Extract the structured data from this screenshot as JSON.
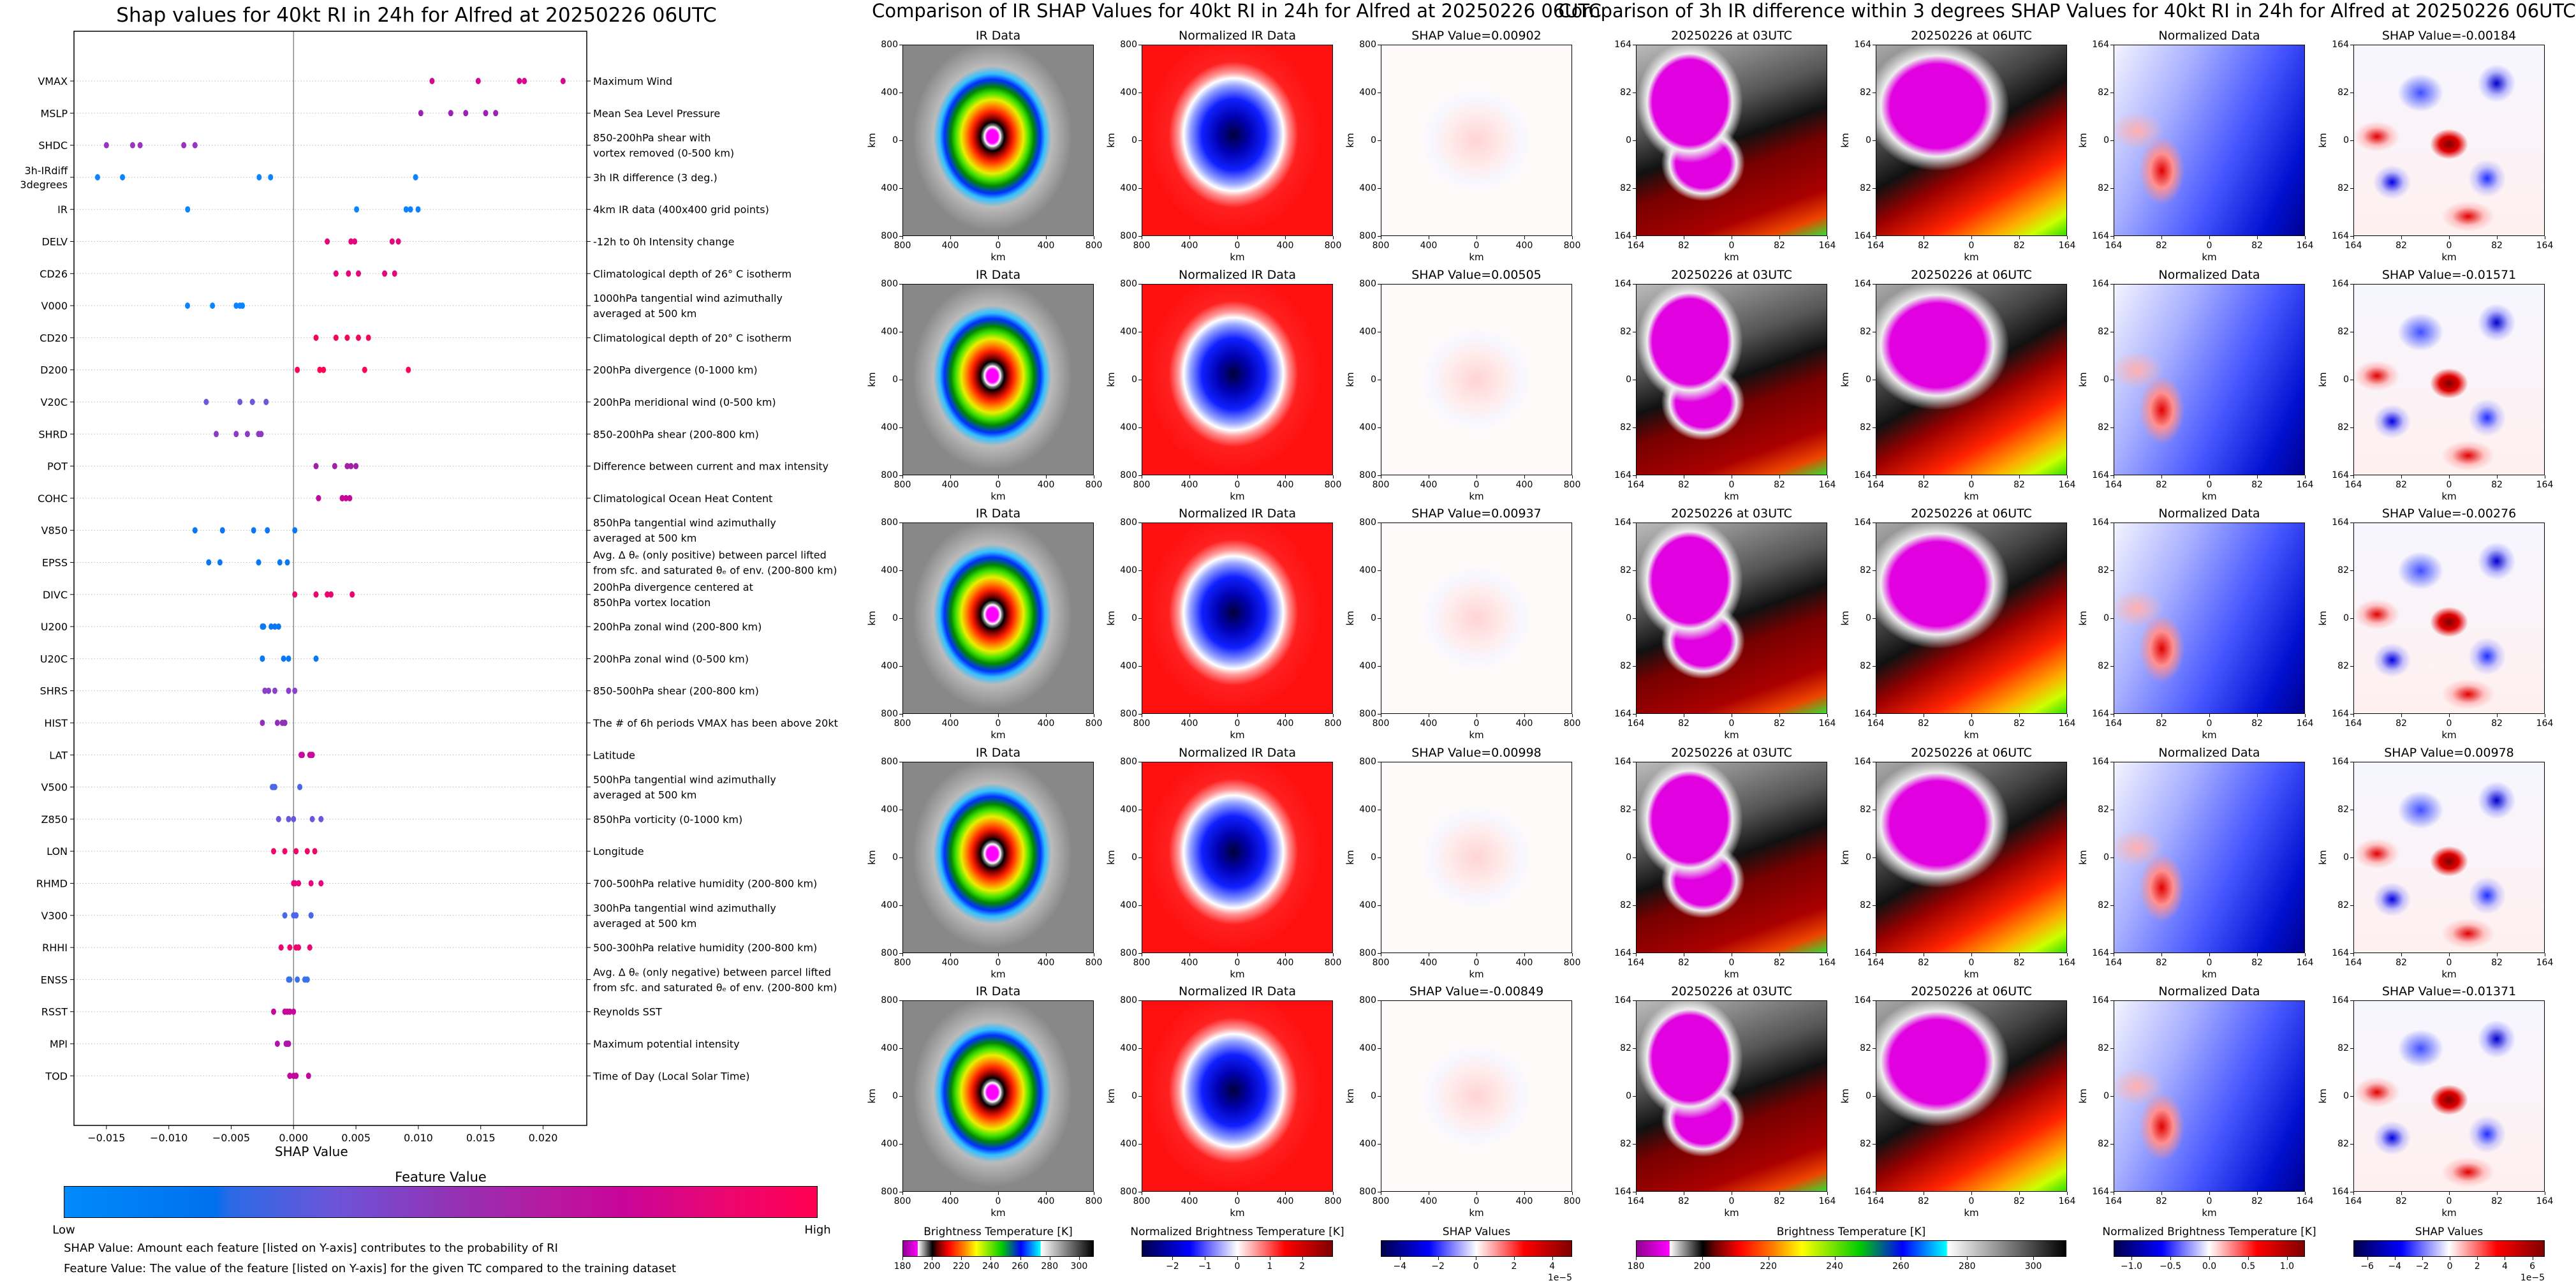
{
  "chart_data": [
    {
      "type": "scatter",
      "title": "Shap values for 40kt RI in 24h for Alfred at 20250226 06UTC",
      "xlabel": "SHAP Value",
      "xlim": [
        -0.0176,
        0.0235
      ],
      "xticks": [
        {
          "v": -0.015,
          "label": "−0.015"
        },
        {
          "v": -0.01,
          "label": "−0.010"
        },
        {
          "v": -0.005,
          "label": "−0.005"
        },
        {
          "v": 0.0,
          "label": "0.000"
        },
        {
          "v": 0.005,
          "label": "0.005"
        },
        {
          "v": 0.01,
          "label": "0.010"
        },
        {
          "v": 0.015,
          "label": "0.015"
        },
        {
          "v": 0.02,
          "label": "0.020"
        }
      ],
      "grid": "dotted horizontal per feature",
      "features": [
        {
          "name": [
            "VMAX"
          ],
          "desc": [
            "Maximum Wind"
          ],
          "color": "#d4078e",
          "values": [
            0.0111,
            0.0148,
            0.0181,
            0.0185,
            0.0216
          ]
        },
        {
          "name": [
            "MSLP"
          ],
          "desc": [
            "Mean Sea Level Pressure"
          ],
          "color": "#9c22b4",
          "values": [
            0.0102,
            0.0126,
            0.0138,
            0.0154,
            0.0162
          ]
        },
        {
          "name": [
            "SHDC"
          ],
          "desc": [
            "850-200hPa shear with",
            "vortex removed (0-500 km)"
          ],
          "color": "#9a32c2",
          "values": [
            -0.015,
            -0.0129,
            -0.0123,
            -0.0088,
            -0.0079
          ]
        },
        {
          "name": [
            "3h-IRdiff",
            "3degrees"
          ],
          "desc": [
            "3h IR difference (3 deg.)"
          ],
          "color": "#0a84ff",
          "values": [
            -0.01571,
            -0.01371,
            -0.00276,
            -0.00184,
            0.00978
          ]
        },
        {
          "name": [
            "IR"
          ],
          "desc": [
            "4km IR data (400x400 grid points)"
          ],
          "color": "#0a84ff",
          "values": [
            -0.00849,
            0.00505,
            0.00902,
            0.00937,
            0.00998
          ]
        },
        {
          "name": [
            "DELV"
          ],
          "desc": [
            "-12h to 0h Intensity change"
          ],
          "color": "#e2077a",
          "values": [
            0.0027,
            0.0046,
            0.0049,
            0.0079,
            0.0084
          ]
        },
        {
          "name": [
            "CD26"
          ],
          "desc": [
            "Climatological depth of 26° C isotherm"
          ],
          "color": "#e2077a",
          "values": [
            0.0034,
            0.0044,
            0.0052,
            0.0073,
            0.0081
          ]
        },
        {
          "name": [
            "V000"
          ],
          "desc": [
            "1000hPa tangential wind azimuthally",
            "averaged at 500 km"
          ],
          "color": "#0a84ff",
          "values": [
            -0.0085,
            -0.0065,
            -0.0046,
            -0.0043,
            -0.0041
          ]
        },
        {
          "name": [
            "CD20"
          ],
          "desc": [
            "Climatological depth of 20° C isotherm"
          ],
          "color": "#f20560",
          "values": [
            0.0018,
            0.0034,
            0.0043,
            0.0052,
            0.006
          ]
        },
        {
          "name": [
            "D200"
          ],
          "desc": [
            "200hPa divergence (0-1000 km)"
          ],
          "color": "#ff0354",
          "values": [
            0.0003,
            0.0021,
            0.0024,
            0.0057,
            0.0092
          ]
        },
        {
          "name": [
            "V20C"
          ],
          "desc": [
            "200hPa meridional wind (0-500 km)"
          ],
          "color": "#6a5ad8",
          "values": [
            -0.007,
            -0.0043,
            -0.0033,
            -0.0022,
            -0.0022
          ]
        },
        {
          "name": [
            "SHRD"
          ],
          "desc": [
            "850-200hPa shear (200-800 km)"
          ],
          "color": "#8a3dc4",
          "values": [
            -0.0062,
            -0.0046,
            -0.0037,
            -0.0028,
            -0.0026
          ]
        },
        {
          "name": [
            "POT"
          ],
          "desc": [
            "Difference between current and max intensity"
          ],
          "color": "#a020a8",
          "values": [
            0.0018,
            0.0033,
            0.0043,
            0.0046,
            0.005
          ]
        },
        {
          "name": [
            "COHC"
          ],
          "desc": [
            "Climatological Ocean Heat Content"
          ],
          "color": "#c4089a",
          "values": [
            0.002,
            0.0039,
            0.0039,
            0.0042,
            0.0045
          ]
        },
        {
          "name": [
            "V850"
          ],
          "desc": [
            "850hPa tangential wind azimuthally",
            "averaged at 500 km"
          ],
          "color": "#0a78f4",
          "values": [
            -0.0079,
            -0.0057,
            -0.0032,
            -0.0021,
            0.0001
          ]
        },
        {
          "name": [
            "EPSS"
          ],
          "desc": [
            "Avg. Δ θₑ (only positive) between parcel lifted",
            "from sfc. and saturated θₑ of env. (200-800 km)"
          ],
          "color": "#0a78f4",
          "values": [
            -0.0068,
            -0.0059,
            -0.0028,
            -0.0011,
            -0.0005
          ]
        },
        {
          "name": [
            "DIVC"
          ],
          "desc": [
            "200hPa divergence centered at",
            "850hPa vortex location"
          ],
          "color": "#ea066f",
          "values": [
            0.0001,
            0.0018,
            0.0027,
            0.003,
            0.0047
          ]
        },
        {
          "name": [
            "U200"
          ],
          "desc": [
            "200hPa zonal wind (200-800 km)"
          ],
          "color": "#0a78f4",
          "values": [
            -0.0025,
            -0.0024,
            -0.0018,
            -0.0015,
            -0.0012
          ]
        },
        {
          "name": [
            "U20C"
          ],
          "desc": [
            "200hPa zonal wind (0-500 km)"
          ],
          "color": "#0a78f4",
          "values": [
            -0.0025,
            -0.0025,
            -0.0008,
            -0.0004,
            0.0018
          ]
        },
        {
          "name": [
            "SHRS"
          ],
          "desc": [
            "850-500hPa shear (200-800 km)"
          ],
          "color": "#8a40c8",
          "values": [
            -0.0023,
            -0.002,
            -0.0015,
            -0.0004,
            0.0001
          ]
        },
        {
          "name": [
            "HIST"
          ],
          "desc": [
            "The # of 6h periods VMAX has been above 20kt"
          ],
          "color": "#9030b8",
          "values": [
            -0.0025,
            -0.0013,
            -0.0009,
            -0.0007,
            -0.0007
          ]
        },
        {
          "name": [
            "LAT"
          ],
          "desc": [
            "Latitude"
          ],
          "color": "#c8079c",
          "values": [
            0.0006,
            0.0007,
            0.0013,
            0.0014,
            0.0015
          ]
        },
        {
          "name": [
            "V500"
          ],
          "desc": [
            "500hPa tangential wind azimuthally",
            "averaged at 500 km"
          ],
          "color": "#4a68e8",
          "values": [
            -0.0017,
            -0.0016,
            -0.0015,
            0.0005,
            0.0005
          ]
        },
        {
          "name": [
            "Z850"
          ],
          "desc": [
            "850hPa vorticity (0-1000 km)"
          ],
          "color": "#6a58dc",
          "values": [
            -0.0012,
            -0.0004,
            0.0,
            0.0015,
            0.0022
          ]
        },
        {
          "name": [
            "LON"
          ],
          "desc": [
            "Longitude"
          ],
          "color": "#ee0668",
          "values": [
            -0.0016,
            -0.0007,
            0.0002,
            0.0011,
            0.0017
          ]
        },
        {
          "name": [
            "RHMD"
          ],
          "desc": [
            "700-500hPa relative humidity (200-800 km)"
          ],
          "color": "#e8067a",
          "values": [
            0.0,
            0.0001,
            0.0004,
            0.0014,
            0.0022
          ]
        },
        {
          "name": [
            "V300"
          ],
          "desc": [
            "300hPa tangential wind azimuthally",
            "averaged at 500 km"
          ],
          "color": "#4a68e8",
          "values": [
            -0.0007,
            0.0,
            0.0002,
            0.0014,
            0.0014
          ]
        },
        {
          "name": [
            "RHHI"
          ],
          "desc": [
            "500-300hPa relative humidity (200-800 km)"
          ],
          "color": "#ee0670",
          "values": [
            -0.001,
            -0.0003,
            0.0002,
            0.0004,
            0.0013
          ]
        },
        {
          "name": [
            "ENSS"
          ],
          "desc": [
            "Avg. Δ θₑ (only negative) between parcel lifted",
            "from sfc. and saturated θₑ of env. (200-800 km)"
          ],
          "color": "#3a70ea",
          "values": [
            -0.0004,
            -0.0003,
            0.0003,
            0.0009,
            0.0011
          ]
        },
        {
          "name": [
            "RSST"
          ],
          "desc": [
            "Reynolds SST"
          ],
          "color": "#c8089a",
          "values": [
            -0.0016,
            -0.0007,
            -0.0005,
            -0.0003,
            0.0
          ]
        },
        {
          "name": [
            "MPI"
          ],
          "desc": [
            "Maximum potential intensity"
          ],
          "color": "#b014a8",
          "values": [
            -0.0013,
            -0.0006,
            -0.0005,
            -0.0004,
            -0.0004
          ]
        },
        {
          "name": [
            "TOD"
          ],
          "desc": [
            "Time of Day (Local Solar Time)"
          ],
          "color": "#c0089c",
          "values": [
            -0.0003,
            0.0,
            0.0002,
            0.0002,
            0.0012
          ]
        }
      ],
      "colorbar": {
        "title": "Feature Value",
        "low": "Low",
        "high": "High",
        "colors": [
          "#008afb",
          "#9431b3",
          "#ff0052"
        ]
      }
    }
  ],
  "captions": [
    "SHAP Value: Amount each feature [listed on Y-axis] contributes to the probability of RI",
    "Feature Value: The value of the feature [listed on Y-axis] for the given TC compared to the training dataset"
  ],
  "ir_comparison": {
    "title": "Comparison of IR SHAP Values for 40kt RI in 24h for Alfred at 20250226 06UTC",
    "axis_label": "km",
    "ticks": [
      "800",
      "400",
      "0",
      "400",
      "800"
    ],
    "rows": [
      [
        "IR Data",
        "Normalized IR Data",
        "SHAP Value=0.00902"
      ],
      [
        "IR Data",
        "Normalized IR Data",
        "SHAP Value=0.00505"
      ],
      [
        "IR Data",
        "Normalized IR Data",
        "SHAP Value=0.00937"
      ],
      [
        "IR Data",
        "Normalized IR Data",
        "SHAP Value=0.00998"
      ],
      [
        "IR Data",
        "Normalized IR Data",
        "SHAP Value=-0.00849"
      ]
    ],
    "colorbars": [
      {
        "label": "Brightness Temperature [K]",
        "colormap": "ir",
        "range": [
          180,
          310
        ],
        "ticks": [
          {
            "v": 180,
            "label": "180"
          },
          {
            "v": 200,
            "label": "200"
          },
          {
            "v": 220,
            "label": "220"
          },
          {
            "v": 240,
            "label": "240"
          },
          {
            "v": 260,
            "label": "260"
          },
          {
            "v": 280,
            "label": "280"
          },
          {
            "v": 300,
            "label": "300"
          }
        ]
      },
      {
        "label": "Normalized Brightness Temperature [K]",
        "colormap": "seismic",
        "range": [
          -2.95,
          2.95
        ],
        "ticks": [
          {
            "v": -2,
            "label": "−2"
          },
          {
            "v": -1,
            "label": "−1"
          },
          {
            "v": 0,
            "label": "0"
          },
          {
            "v": 1,
            "label": "1"
          },
          {
            "v": 2,
            "label": "2"
          }
        ]
      },
      {
        "label": "SHAP Values",
        "colormap": "seismic",
        "range": [
          -5.0,
          5.05
        ],
        "offset": "1e−5",
        "ticks": [
          {
            "v": -4,
            "label": "−4"
          },
          {
            "v": -2,
            "label": "−2"
          },
          {
            "v": 0,
            "label": "0"
          },
          {
            "v": 2,
            "label": "2"
          },
          {
            "v": 4,
            "label": "4"
          }
        ]
      }
    ]
  },
  "ir3h_comparison": {
    "title": "Comparison of 3h IR difference within 3 degrees SHAP Values for 40kt RI in 24h for Alfred at 20250226 06UTC",
    "axis_label": "km",
    "ticks": [
      "164",
      "82",
      "0",
      "82",
      "164"
    ],
    "rows": [
      [
        "20250226 at 03UTC",
        "20250226 at 06UTC",
        "Normalized Data",
        "SHAP Value=-0.00184"
      ],
      [
        "20250226 at 03UTC",
        "20250226 at 06UTC",
        "Normalized Data",
        "SHAP Value=-0.01571"
      ],
      [
        "20250226 at 03UTC",
        "20250226 at 06UTC",
        "Normalized Data",
        "SHAP Value=-0.00276"
      ],
      [
        "20250226 at 03UTC",
        "20250226 at 06UTC",
        "Normalized Data",
        "SHAP Value=0.00978"
      ],
      [
        "20250226 at 03UTC",
        "20250226 at 06UTC",
        "Normalized Data",
        "SHAP Value=-0.01371"
      ]
    ],
    "colorbars": [
      {
        "label": "Brightness Temperature [K]",
        "colormap": "ir",
        "range": [
          180,
          310
        ],
        "ticks": [
          {
            "v": 180,
            "label": "180"
          },
          {
            "v": 200,
            "label": "200"
          },
          {
            "v": 220,
            "label": "220"
          },
          {
            "v": 240,
            "label": "240"
          },
          {
            "v": 260,
            "label": "260"
          },
          {
            "v": 280,
            "label": "280"
          },
          {
            "v": 300,
            "label": "300"
          }
        ]
      },
      {
        "label": "Normalized Brightness Temperature [K]",
        "colormap": "seismic",
        "range": [
          -1.23,
          1.23
        ],
        "ticks": [
          {
            "v": -1.0,
            "label": "−1.0"
          },
          {
            "v": -0.5,
            "label": "−0.5"
          },
          {
            "v": 0,
            "label": "0.0"
          },
          {
            "v": 0.5,
            "label": "0.5"
          },
          {
            "v": 1.0,
            "label": "1.0"
          }
        ]
      },
      {
        "label": "SHAP Values",
        "colormap": "seismic",
        "range": [
          -7.0,
          6.9
        ],
        "offset": "1e−5",
        "ticks": [
          {
            "v": -6,
            "label": "−6"
          },
          {
            "v": -4,
            "label": "−4"
          },
          {
            "v": -2,
            "label": "−2"
          },
          {
            "v": 0,
            "label": "0"
          },
          {
            "v": 2,
            "label": "2"
          },
          {
            "v": 4,
            "label": "4"
          },
          {
            "v": 6,
            "label": "6"
          }
        ]
      }
    ]
  }
}
